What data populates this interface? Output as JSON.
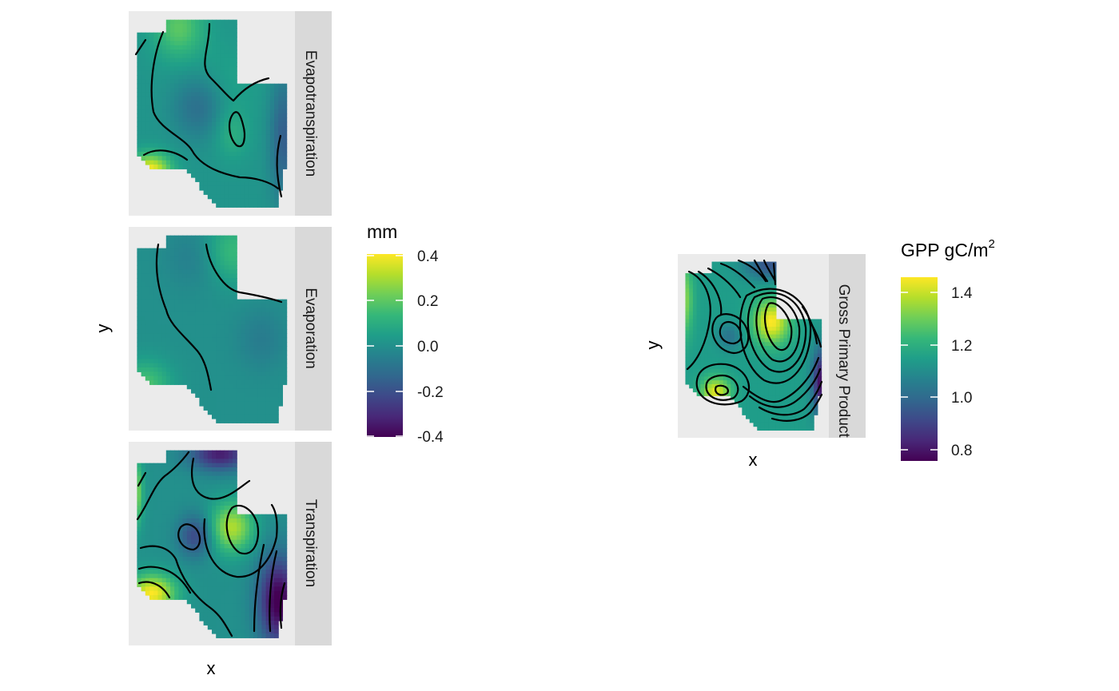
{
  "chart_data": [
    {
      "type": "heatmap",
      "facet_layout": "vertical",
      "facets": [
        "Evapotranspiration",
        "Evaporation",
        "Transpiration"
      ],
      "xlabel": "x",
      "ylabel": "y",
      "contours": true,
      "legend": {
        "title": "mm",
        "title_superscript": "",
        "placement": "right",
        "colormap": "viridis",
        "limits": [
          -0.42,
          0.42
        ],
        "ticks": [
          "0.4",
          "0.2",
          "0.0",
          "-0.2",
          "-0.4"
        ],
        "tick_values": [
          0.4,
          0.2,
          0.0,
          -0.2,
          -0.4
        ]
      }
    },
    {
      "type": "heatmap",
      "facets": [
        "Gross Primary Productivity"
      ],
      "xlabel": "x",
      "ylabel": "y",
      "contours": true,
      "legend": {
        "title": "GPP gC/m",
        "title_superscript": "2",
        "placement": "right",
        "colormap": "viridis",
        "limits": [
          0.75,
          1.47
        ],
        "ticks": [
          "1.4",
          "1.2",
          "1.0",
          "0.8"
        ],
        "tick_values": [
          1.4,
          1.2,
          1.0,
          0.8
        ]
      }
    }
  ],
  "colors": {
    "panel_background": "#ebebeb",
    "strip_background": "#d9d9d9",
    "contour": "#000000"
  }
}
